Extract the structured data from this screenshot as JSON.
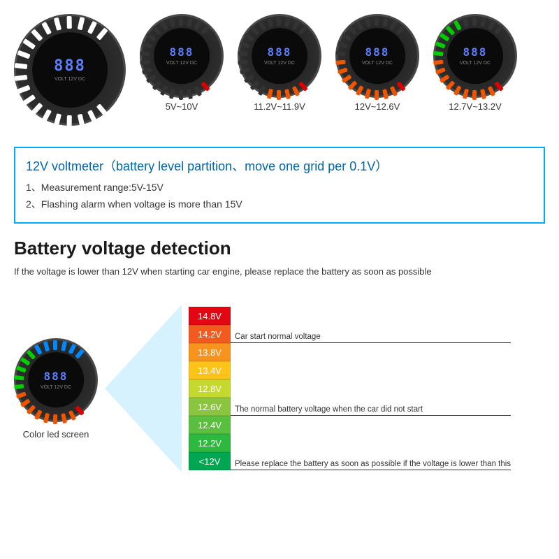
{
  "gauges": [
    {
      "label": "",
      "large": true,
      "segColors": [
        "#fff",
        "#fff",
        "#fff",
        "#fff",
        "#fff",
        "#fff",
        "#fff",
        "#fff",
        "#fff",
        "#fff",
        "#fff",
        "#fff",
        "#fff",
        "#fff",
        "#fff",
        "#fff",
        "#fff",
        "#fff",
        "#fff",
        "#fff"
      ],
      "display": "888"
    },
    {
      "label": "5V~10V",
      "segColors": [
        "#d00",
        "",
        "",
        "",
        "",
        "",
        "",
        "",
        "",
        "",
        "",
        "",
        "",
        "",
        "",
        "",
        "",
        "",
        "",
        ""
      ],
      "display": "888"
    },
    {
      "label": "11.2V~11.9V",
      "segColors": [
        "#d00",
        "#e50",
        "#e50",
        "#e50",
        "#e50",
        "",
        "",
        "",
        "",
        "",
        "",
        "",
        "",
        "",
        "",
        "",
        "",
        "",
        "",
        ""
      ],
      "display": "888"
    },
    {
      "label": "12V~12.6V",
      "segColors": [
        "#d00",
        "#e50",
        "#e50",
        "#e50",
        "#e50",
        "#e50",
        "#e50",
        "#e50",
        "#e50",
        "#e50",
        "",
        "",
        "",
        "",
        "",
        "",
        "",
        "",
        "",
        ""
      ],
      "display": "888"
    },
    {
      "label": "12.7V~13.2V",
      "segColors": [
        "#d00",
        "#e50",
        "#e50",
        "#e50",
        "#e50",
        "#e50",
        "#e50",
        "#e50",
        "#e50",
        "#e50",
        "#0c0",
        "#0c0",
        "#0c0",
        "#0c0",
        "#0c0",
        "",
        "",
        "",
        "",
        ""
      ],
      "display": "888"
    }
  ],
  "infoBox": {
    "title": "12V voltmeter（battery level partition、move one grid per 0.1V）",
    "line1": "1、Measurement range:5V-15V",
    "line2": "2、Flashing alarm when voltage is more than 15V"
  },
  "section": {
    "title": "Battery voltage detection",
    "subtitle": "If the voltage is lower than 12V when starting car engine, please replace the battery as soon as possible"
  },
  "bottom": {
    "label": "Color led screen",
    "gaugeSegs": [
      "#d00",
      "#e50",
      "#e50",
      "#e50",
      "#e50",
      "#e50",
      "#e50",
      "#e50",
      "#e50",
      "#0c0",
      "#0c0",
      "#0c0",
      "#0c0",
      "#0c0",
      "#08f",
      "#08f",
      "#08f",
      "#08f",
      "#08f",
      "#08f"
    ],
    "gaugeDisplay": "888"
  },
  "chart": {
    "rows": [
      {
        "v": "14.8V",
        "c": "#e30613",
        "note": ""
      },
      {
        "v": "14.2V",
        "c": "#f25b1f",
        "note": "Car start normal voltage"
      },
      {
        "v": "13.8V",
        "c": "#f7931e",
        "note": ""
      },
      {
        "v": "13.4V",
        "c": "#fcc419",
        "note": ""
      },
      {
        "v": "12.8V",
        "c": "#c4d82e",
        "note": ""
      },
      {
        "v": "12.6V",
        "c": "#8bc53f",
        "note": "The normal battery voltage when the car did not start"
      },
      {
        "v": "12.4V",
        "c": "#5abf3f",
        "note": ""
      },
      {
        "v": "12.2V",
        "c": "#2db93f",
        "note": ""
      },
      {
        "v": "<12V",
        "c": "#00a651",
        "note": "Please replace the battery as soon as possible if the voltage is lower than this"
      }
    ]
  },
  "gaugeSub": "VOLT  12V DC"
}
